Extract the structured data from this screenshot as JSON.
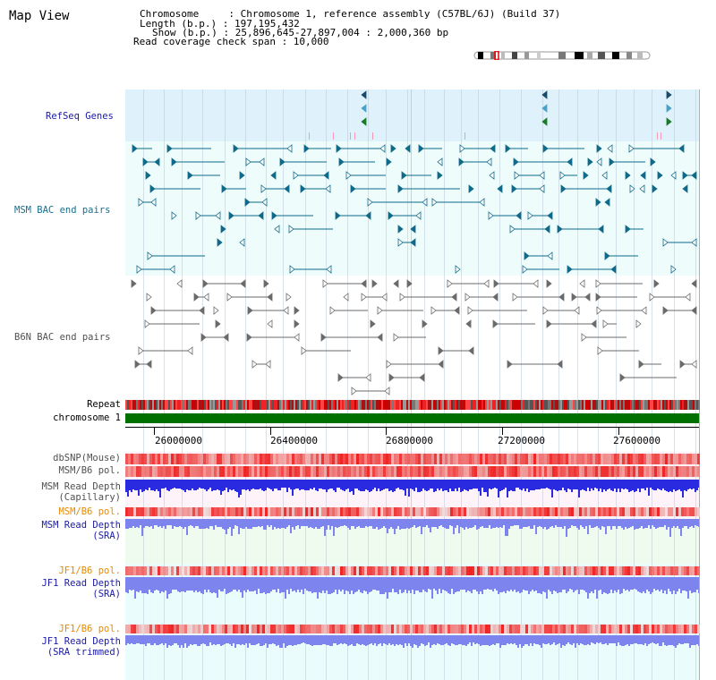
{
  "app": {
    "title": "Map View"
  },
  "header": {
    "chromosome": "Chromosome     : Chromosome 1, reference assembly (C57BL/6J) (Build 37)",
    "length": "Length (b.p.) : 197,195,432",
    "show": "Show (b.p.) : 25,896,645-27,897,004 : 2,000,360 bp",
    "span": "Read coverage check span : 10,000"
  },
  "tracks": {
    "refseq": "RefSeq Genes",
    "msm_bac": "MSM BAC end pairs",
    "b6n_bac": "B6N BAC end pairs",
    "repeat": "Repeat",
    "chrom": "chromosome 1",
    "dbsnp": "dbSNP(Mouse)",
    "msm_b6_pol_1": "MSM/B6 pol.",
    "msm_read_depth_cap": "MSM Read Depth",
    "msm_read_depth_cap_sub": "(Capillary)",
    "msm_b6_pol_2": "MSM/B6 pol.",
    "msm_read_depth_sra": "MSM Read Depth",
    "msm_read_depth_sra_sub": "(SRA)",
    "jf1_b6_pol_1": "JF1/B6 pol.",
    "jf1_read_depth_sra": "JF1 Read Depth",
    "jf1_read_depth_sra_sub": "(SRA)",
    "jf1_b6_pol_2": "JF1/B6 pol.",
    "jf1_read_depth_trim": "JF1 Read Depth",
    "jf1_read_depth_trim_sub": "(SRA trimmed)"
  },
  "axis": {
    "ticks": [
      "26000000",
      "26400000",
      "26800000",
      "27200000",
      "27600000"
    ]
  },
  "colors": {
    "refseq_bg": "#dff2fb",
    "bac_bg": "#eefcfc",
    "teal_feature": "#0f6a8a",
    "gray_feature": "#6a6a6a",
    "chrom_green": "#007000",
    "heat_red": "#ee2222",
    "depth_blue": "#2a2ae0",
    "depth_light_blue": "#7e84ee"
  },
  "icons": {
    "ideogram": "chromosome-ideogram-icon"
  }
}
